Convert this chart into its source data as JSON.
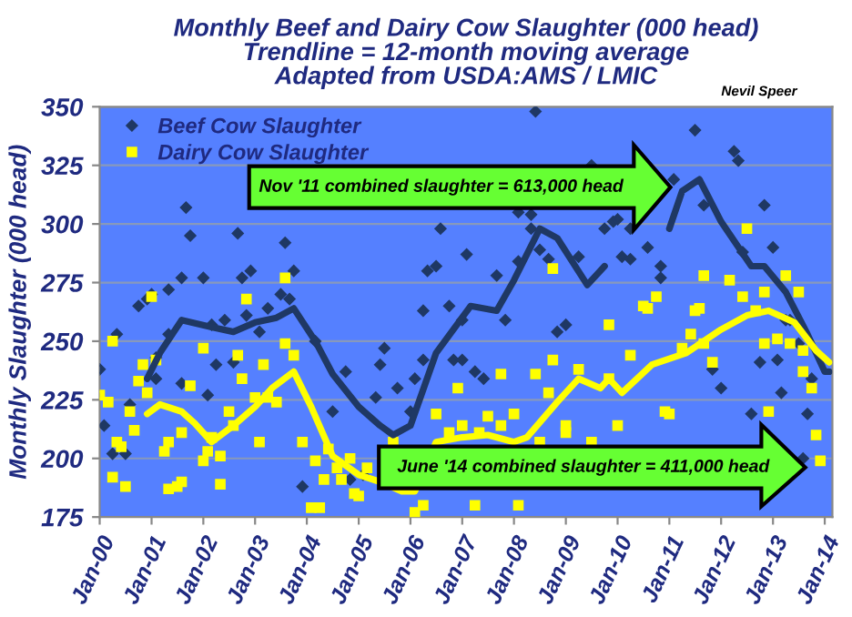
{
  "chart_data": {
    "type": "scatter",
    "title": "Monthly Beef and Dairy Cow Slaughter (000 head)\nTrendline = 12-month moving average\nAdapted from USDA:AMS / LMIC",
    "ylabel": "Monthly Slaughter (000 head)",
    "annotations": [
      "Nevil Speer",
      "Nov '11 combined slaughter = 613,000 head",
      "June '14 combined slaughter = 411,000 head"
    ],
    "xlim": [
      "2000-01-01",
      "2014-02-24"
    ],
    "ylim": [
      175,
      350
    ],
    "yticks": [
      175,
      200,
      225,
      250,
      275,
      300,
      325,
      350
    ],
    "xticks": [
      {
        "value": "2000-01",
        "label": "Jan-00"
      },
      {
        "value": "2001-01",
        "label": "Jan-01"
      },
      {
        "value": "2002-01",
        "label": "Jan-02"
      },
      {
        "value": "2003-01",
        "label": "Jan-03"
      },
      {
        "value": "2004-01",
        "label": "Jan-04"
      },
      {
        "value": "2005-01",
        "label": "Jan-05"
      },
      {
        "value": "2006-01",
        "label": "Jan-06"
      },
      {
        "value": "2007-01",
        "label": "Jan-07"
      },
      {
        "value": "2008-01",
        "label": "Jan-08"
      },
      {
        "value": "2009-01",
        "label": "Jan-09"
      },
      {
        "value": "2010-01",
        "label": "Jan-10"
      },
      {
        "value": "2011-01",
        "label": "Jan-11"
      },
      {
        "value": "2012-01",
        "label": "Jan-12"
      },
      {
        "value": "2013-01",
        "label": "Jan-13"
      },
      {
        "value": "2014-01",
        "label": "Jan-14"
      }
    ],
    "grid": "y",
    "legend": "top left",
    "series": [
      {
        "name": "Beef Cow Slaughter",
        "marker": "diamond",
        "color": "#1f3864",
        "x": [
          "2000-01",
          "2000-02",
          "2000-04",
          "2000-05",
          "2000-07",
          "2000-08",
          "2000-10",
          "2000-12",
          "2001-01",
          "2001-02",
          "2001-02",
          "2001-05",
          "2001-05",
          "2001-08",
          "2001-08",
          "2001-09",
          "2001-10",
          "2002-01",
          "2002-02",
          "2002-03",
          "2002-04",
          "2002-06",
          "2002-08",
          "2002-09",
          "2002-10",
          "2002-11",
          "2002-12",
          "2003-02",
          "2003-04",
          "2003-07",
          "2003-08",
          "2003-09",
          "2003-10",
          "2003-12",
          "2004-03",
          "2004-07",
          "2004-10",
          "2004-11",
          "2005-02",
          "2005-05",
          "2005-06",
          "2005-07",
          "2005-10",
          "2006-01",
          "2006-02",
          "2006-04",
          "2006-04",
          "2006-05",
          "2006-07",
          "2006-08",
          "2006-10",
          "2006-11",
          "2007-01",
          "2007-01",
          "2007-02",
          "2007-04",
          "2007-06",
          "2007-09",
          "2007-11",
          "2008-02",
          "2008-02",
          "2008-05",
          "2008-05",
          "2008-06",
          "2008-07",
          "2008-09",
          "2008-11",
          "2009-01",
          "2009-04",
          "2009-07",
          "2009-10",
          "2009-12",
          "2010-01",
          "2010-02",
          "2010-04",
          "2010-04",
          "2010-08",
          "2010-11",
          "2010-11",
          "2011-02",
          "2011-07",
          "2011-09",
          "2011-11",
          "2012-01",
          "2012-04",
          "2012-05",
          "2012-06",
          "2012-08",
          "2012-10",
          "2012-11",
          "2013-01",
          "2013-02",
          "2013-03",
          "2013-04",
          "2013-05",
          "2013-07",
          "2013-08",
          "2013-09",
          "2013-10"
        ],
        "values": [
          238,
          214,
          202,
          253,
          202,
          223,
          265,
          268,
          270,
          234,
          243,
          272,
          253,
          277,
          232,
          307,
          295,
          277,
          227,
          257,
          240,
          259,
          241,
          296,
          277,
          261,
          280,
          254,
          264,
          270,
          292,
          268,
          280,
          188,
          250,
          220,
          237,
          191,
          193,
          226,
          240,
          247,
          230,
          220,
          234,
          263,
          242,
          280,
          282,
          298,
          265,
          242,
          242,
          259,
          287,
          237,
          234,
          278,
          259,
          284,
          305,
          298,
          304,
          348,
          289,
          285,
          254,
          257,
          286,
          325,
          298,
          301,
          302,
          286,
          285,
          298,
          290,
          282,
          277,
          319,
          340,
          308,
          238,
          230,
          331,
          327,
          288,
          219,
          241,
          308,
          290,
          242,
          228,
          259,
          259,
          249,
          200,
          219,
          234
        ]
      },
      {
        "name": "Dairy Cow Slaughter",
        "marker": "square",
        "color": "#ffff00",
        "x": [
          "2000-01",
          "2000-03",
          "2000-04",
          "2000-04",
          "2000-05",
          "2000-06",
          "2000-07",
          "2000-08",
          "2000-09",
          "2000-10",
          "2000-11",
          "2000-12",
          "2001-01",
          "2001-02",
          "2001-04",
          "2001-05",
          "2001-05",
          "2001-07",
          "2001-08",
          "2001-08",
          "2001-10",
          "2002-01",
          "2002-01",
          "2002-02",
          "2002-03",
          "2002-05",
          "2002-05",
          "2002-07",
          "2002-08",
          "2002-09",
          "2002-10",
          "2002-11",
          "2003-01",
          "2003-02",
          "2003-03",
          "2003-04",
          "2003-06",
          "2003-08",
          "2003-08",
          "2003-10",
          "2003-12",
          "2004-02",
          "2004-03",
          "2004-04",
          "2004-05",
          "2004-06",
          "2004-08",
          "2004-09",
          "2004-11",
          "2004-12",
          "2005-01",
          "2005-03",
          "2005-09",
          "2005-11",
          "2006-02",
          "2006-04",
          "2006-07",
          "2006-10",
          "2006-12",
          "2007-01",
          "2007-04",
          "2007-05",
          "2007-07",
          "2007-10",
          "2007-10",
          "2008-01",
          "2008-02",
          "2008-06",
          "2008-07",
          "2008-09",
          "2008-10",
          "2008-10",
          "2009-01",
          "2009-01",
          "2009-04",
          "2009-07",
          "2009-11",
          "2009-11",
          "2010-01",
          "2010-04",
          "2010-07",
          "2010-08",
          "2010-10",
          "2010-12",
          "2011-01",
          "2011-04",
          "2011-06",
          "2011-07",
          "2011-08",
          "2011-09",
          "2011-09",
          "2011-11",
          "2012-03",
          "2012-06",
          "2012-07",
          "2012-09",
          "2012-11",
          "2012-11",
          "2012-12",
          "2013-02",
          "2013-04",
          "2013-05",
          "2013-07",
          "2013-08",
          "2013-08",
          "2013-10",
          "2013-11",
          "2013-12"
        ],
        "values": [
          227,
          224,
          250,
          192,
          207,
          205,
          188,
          220,
          212,
          233,
          240,
          228,
          269,
          242,
          203,
          207,
          187,
          188,
          211,
          190,
          231,
          247,
          199,
          203,
          209,
          201,
          189,
          220,
          214,
          244,
          234,
          268,
          226,
          207,
          240,
          226,
          224,
          249,
          277,
          244,
          207,
          179,
          199,
          179,
          191,
          204,
          196,
          191,
          200,
          185,
          184,
          196,
          207,
          null,
          177,
          180,
          219,
          211,
          230,
          214,
          180,
          211,
          218,
          236,
          214,
          219,
          180,
          236,
          207,
          228,
          281,
          242,
          214,
          211,
          238,
          207,
          257,
          234,
          214,
          244,
          265,
          264,
          269,
          220,
          219,
          247,
          253,
          263,
          264,
          249,
          278,
          241,
          276,
          269,
          298,
          263,
          271,
          249,
          220,
          251,
          278,
          249,
          271,
          237,
          246,
          230,
          210,
          199
        ]
      },
      {
        "type": "line",
        "color": "#1f3864",
        "x": [
          "2000-12",
          "2001-03",
          "2001-08",
          "2002-03",
          "2002-08",
          "2003-01",
          "2003-06",
          "2003-10",
          "2004-03",
          "2004-07",
          "2005-01",
          "2005-06",
          "2005-09",
          "2006-01",
          "2006-07",
          "2007-03",
          "2007-09",
          "2008-01",
          "2008-07",
          "2008-11",
          "2009-06",
          "2009-10",
          "2010-06",
          "2011-01",
          "2011-04",
          "2011-08",
          "2012-01",
          "2012-08",
          "2012-11",
          "2013-04",
          "2013-09",
          "2014-01",
          "2014-02"
        ],
        "values": [
          234,
          245,
          259,
          256,
          254,
          258,
          260,
          264,
          250,
          236,
          222,
          214,
          210,
          214,
          245,
          265,
          263,
          276,
          298,
          294,
          274,
          282,
          null,
          298,
          314,
          319,
          301,
          282,
          282,
          271,
          253,
          237,
          237
        ]
      },
      {
        "type": "line",
        "color": "#ffff00",
        "x": [
          "2000-12",
          "2001-03",
          "2001-08",
          "2001-11",
          "2002-03",
          "2002-08",
          "2003-01",
          "2003-05",
          "2003-10",
          "2004-02",
          "2004-07",
          "2005-01",
          "2005-06",
          "2005-11",
          "2006-02",
          "2006-07",
          "2007-01",
          "2007-07",
          "2008-01",
          "2008-04",
          "2008-11",
          "2009-04",
          "2009-09",
          "2009-11",
          "2010-02",
          "2010-09",
          "2011-05",
          "2012-01",
          "2012-07",
          "2012-12",
          "2013-06",
          "2013-11",
          "2014-02"
        ],
        "values": [
          219,
          223,
          220,
          215,
          207,
          214,
          222,
          230,
          237,
          222,
          201,
          193,
          190,
          186,
          186,
          207,
          209,
          210,
          207,
          209,
          224,
          234,
          230,
          234,
          228,
          240,
          245,
          255,
          261,
          263,
          258,
          246,
          241
        ]
      }
    ]
  }
}
